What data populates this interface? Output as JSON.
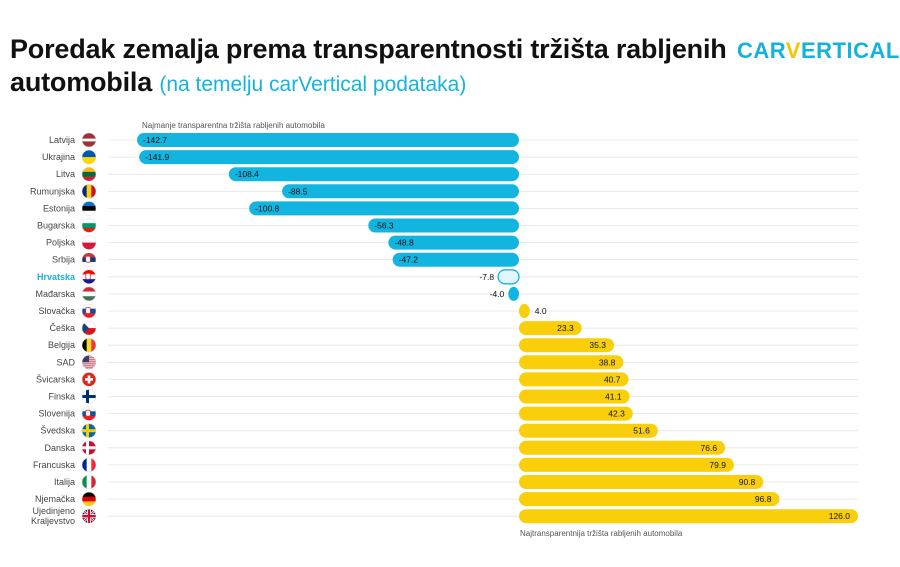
{
  "header": {
    "title_main": "Poredak zemalja prema transparentnosti tržišta rabljenih automobila",
    "title_sub": "(na temelju carVertical podataka)",
    "logo_part1": "CAR",
    "logo_v": "V",
    "logo_part2": "ERTICAL"
  },
  "colors": {
    "negative": "#12b5e0",
    "positive": "#f8cf0a",
    "highlight": "#17b2dd",
    "highlight_fill": "#e2f7fd",
    "grid": "#e4e4e4"
  },
  "chart_data": {
    "type": "bar",
    "orientation": "horizontal",
    "categories": [
      "Latvija",
      "Ukrajina",
      "Litva",
      "Rumunjska",
      "Estonija",
      "Bugarska",
      "Poljska",
      "Srbija",
      "Hrvatska",
      "Mađarska",
      "Slovačka",
      "Češka",
      "Belgija",
      "SAD",
      "Švicarska",
      "Finska",
      "Slovenija",
      "Švedska",
      "Danska",
      "Francuska",
      "Italija",
      "Njemačka",
      "Ujedinjeno Kraljevstvo"
    ],
    "values": [
      -142.7,
      -141.9,
      -108.4,
      -88.5,
      -100.8,
      -56.3,
      -48.8,
      -47.2,
      -7.8,
      -4.0,
      4.0,
      23.3,
      35.3,
      38.8,
      40.7,
      41.1,
      42.3,
      51.6,
      76.6,
      79.9,
      90.8,
      96.8,
      126.0
    ],
    "value_labels": [
      "-142.7",
      "-141.9",
      "-108.4",
      "-88.5",
      "-100.8",
      "-56.3",
      "-48.8",
      "-47.2",
      "-7.8",
      "-4.0",
      "4.0",
      "23.3",
      "35.3",
      "38.8",
      "40.7",
      "41.1",
      "42.3",
      "51.6",
      "76.6",
      "79.9",
      "90.8",
      "96.8",
      "126.0"
    ],
    "highlight_category": "Hrvatska",
    "xlim": [
      -142.7,
      126.0
    ],
    "grid": true,
    "annotation_top": "Najmanje transparentna tržišta rabljenih automobila",
    "annotation_bottom": "Najtransparentnija tržišta rabljenih automobila"
  },
  "flags": [
    {
      "country": "Latvija",
      "type": "h",
      "colors": [
        "#9e3039",
        "#ffffff",
        "#9e3039"
      ],
      "ratios": [
        2,
        1,
        2
      ]
    },
    {
      "country": "Ukrajina",
      "type": "h",
      "colors": [
        "#0057b7",
        "#ffd700"
      ]
    },
    {
      "country": "Litva",
      "type": "h",
      "colors": [
        "#fdb913",
        "#006a44",
        "#c1272d"
      ]
    },
    {
      "country": "Rumunjska",
      "type": "v",
      "colors": [
        "#002b7f",
        "#fcd116",
        "#ce1126"
      ]
    },
    {
      "country": "Estonija",
      "type": "h",
      "colors": [
        "#0072ce",
        "#000000",
        "#ffffff"
      ]
    },
    {
      "country": "Bugarska",
      "type": "h",
      "colors": [
        "#ffffff",
        "#00966e",
        "#d62612"
      ]
    },
    {
      "country": "Poljska",
      "type": "h",
      "colors": [
        "#ffffff",
        "#dc143c"
      ]
    },
    {
      "country": "Srbija",
      "type": "h",
      "colors": [
        "#c6363c",
        "#0c4076",
        "#ffffff"
      ],
      "emblem": true
    },
    {
      "country": "Hrvatska",
      "type": "h",
      "colors": [
        "#ff0000",
        "#ffffff",
        "#171796"
      ],
      "emblem": true
    },
    {
      "country": "Mađarska",
      "type": "h",
      "colors": [
        "#ce2939",
        "#ffffff",
        "#477050"
      ]
    },
    {
      "country": "Slovačka",
      "type": "h",
      "colors": [
        "#ffffff",
        "#0b4ea2",
        "#ee1c25"
      ],
      "emblem": true
    },
    {
      "country": "Češka",
      "type": "cz",
      "colors": [
        "#ffffff",
        "#d7141a",
        "#11457e"
      ]
    },
    {
      "country": "Belgija",
      "type": "v",
      "colors": [
        "#000000",
        "#fdda24",
        "#ef3340"
      ]
    },
    {
      "country": "SAD",
      "type": "us",
      "colors": [
        "#b22234",
        "#ffffff",
        "#3c3b6e"
      ]
    },
    {
      "country": "Švicarska",
      "type": "ch",
      "colors": [
        "#da291c",
        "#ffffff"
      ]
    },
    {
      "country": "Finska",
      "type": "nordic",
      "colors": [
        "#ffffff",
        "#002f6c"
      ]
    },
    {
      "country": "Slovenija",
      "type": "h",
      "colors": [
        "#ffffff",
        "#005da4",
        "#ed1c24"
      ],
      "emblem": true
    },
    {
      "country": "Švedska",
      "type": "nordic",
      "colors": [
        "#006aa7",
        "#fecc00"
      ]
    },
    {
      "country": "Danska",
      "type": "nordic",
      "colors": [
        "#c8102e",
        "#ffffff"
      ]
    },
    {
      "country": "Francuska",
      "type": "v",
      "colors": [
        "#002395",
        "#ffffff",
        "#ed2939"
      ]
    },
    {
      "country": "Italija",
      "type": "v",
      "colors": [
        "#009246",
        "#ffffff",
        "#ce2b37"
      ]
    },
    {
      "country": "Njemačka",
      "type": "h",
      "colors": [
        "#000000",
        "#dd0000",
        "#ffce00"
      ]
    },
    {
      "country": "Ujedinjeno Kraljevstvo",
      "type": "uk",
      "colors": [
        "#012169",
        "#ffffff",
        "#c8102e"
      ]
    }
  ]
}
